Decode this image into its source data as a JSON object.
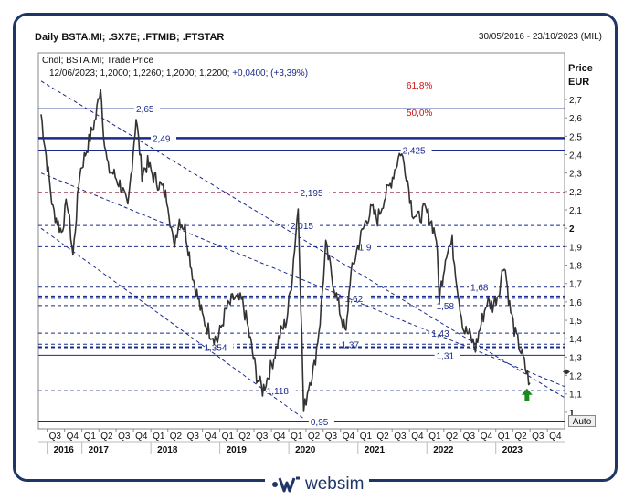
{
  "header": {
    "title": "Daily BSTA.MI; .SX7E; .FTMIB; .FTSTAR",
    "range": "30/05/2016 - 23/10/2023 (MIL)"
  },
  "legend": {
    "line1": "Cndl; BSTA.MI; Trade Price",
    "ohlc": "12/06/2023; 1,2000; 1,2260; 1,2000; 1,2200;",
    "change": "+0,0400; (+3,39%)"
  },
  "axis": {
    "ylabel_1": "Price",
    "ylabel_2": "EUR",
    "auto_label": "Auto",
    "ylim": [
      0.9,
      2.8
    ],
    "y_ticks": [
      {
        "v": 2.7,
        "label": "2,7",
        "bold": false
      },
      {
        "v": 2.6,
        "label": "2,6",
        "bold": false
      },
      {
        "v": 2.5,
        "label": "2,5",
        "bold": false
      },
      {
        "v": 2.4,
        "label": "2,4",
        "bold": false
      },
      {
        "v": 2.3,
        "label": "2,3",
        "bold": false
      },
      {
        "v": 2.2,
        "label": "2,2",
        "bold": false
      },
      {
        "v": 2.1,
        "label": "2,1",
        "bold": false
      },
      {
        "v": 2.0,
        "label": "2",
        "bold": true
      },
      {
        "v": 1.9,
        "label": "1,9",
        "bold": false
      },
      {
        "v": 1.8,
        "label": "1,8",
        "bold": false
      },
      {
        "v": 1.7,
        "label": "1,7",
        "bold": false
      },
      {
        "v": 1.6,
        "label": "1,6",
        "bold": false
      },
      {
        "v": 1.5,
        "label": "1,5",
        "bold": false
      },
      {
        "v": 1.4,
        "label": "1,4",
        "bold": false
      },
      {
        "v": 1.3,
        "label": "1,3",
        "bold": false
      },
      {
        "v": 1.2,
        "label": "1,2",
        "bold": false
      },
      {
        "v": 1.1,
        "label": "1,1",
        "bold": false
      },
      {
        "v": 1.0,
        "label": "1",
        "bold": true
      }
    ],
    "quarters": [
      "Q3",
      "Q4",
      "Q1",
      "Q2",
      "Q3",
      "Q4",
      "Q1",
      "Q2",
      "Q3",
      "Q4",
      "Q1",
      "Q2",
      "Q3",
      "Q4",
      "Q1",
      "Q2",
      "Q3",
      "Q4",
      "Q1",
      "Q2",
      "Q3",
      "Q4",
      "Q1",
      "Q2",
      "Q3",
      "Q4",
      "Q1",
      "Q2",
      "Q3",
      "Q4"
    ],
    "quarters_start": "2016-07-01",
    "years": [
      {
        "label": "2016",
        "start": "2016-07-01"
      },
      {
        "label": "2017",
        "start": "2017-01-01"
      },
      {
        "label": "2018",
        "start": "2018-01-01"
      },
      {
        "label": "2019",
        "start": "2019-01-01"
      },
      {
        "label": "2020",
        "start": "2020-01-01"
      },
      {
        "label": "2021",
        "start": "2021-01-01"
      },
      {
        "label": "2022",
        "start": "2022-01-01"
      },
      {
        "label": "2023",
        "start": "2023-01-01"
      }
    ],
    "x_start": "2016-05-30",
    "x_end": "2023-12-31"
  },
  "chart_data": {
    "type": "line",
    "series": [
      {
        "points": [
          [
            "2016-05-30",
            2.62
          ],
          [
            "2016-07-01",
            2.35
          ],
          [
            "2016-08-01",
            2.1
          ],
          [
            "2016-09-15",
            1.98
          ],
          [
            "2016-10-15",
            2.15
          ],
          [
            "2016-11-15",
            1.85
          ],
          [
            "2016-12-20",
            2.3
          ],
          [
            "2017-02-01",
            2.45
          ],
          [
            "2017-03-15",
            2.6
          ],
          [
            "2017-04-10",
            2.78
          ],
          [
            "2017-05-01",
            2.45
          ],
          [
            "2017-05-20",
            2.32
          ],
          [
            "2017-06-15",
            2.3
          ],
          [
            "2017-08-01",
            2.22
          ],
          [
            "2017-09-01",
            2.1
          ],
          [
            "2017-10-15",
            2.6
          ],
          [
            "2017-11-15",
            2.3
          ],
          [
            "2017-12-15",
            2.35
          ],
          [
            "2018-01-15",
            2.28
          ],
          [
            "2018-03-01",
            2.22
          ],
          [
            "2018-04-01",
            2.15
          ],
          [
            "2018-05-01",
            1.9
          ],
          [
            "2018-06-01",
            2.05
          ],
          [
            "2018-07-01",
            2.0
          ],
          [
            "2018-08-15",
            1.72
          ],
          [
            "2018-10-01",
            1.52
          ],
          [
            "2018-11-01",
            1.45
          ],
          [
            "2018-12-20",
            1.39
          ],
          [
            "2019-02-01",
            1.55
          ],
          [
            "2019-03-15",
            1.62
          ],
          [
            "2019-05-01",
            1.6
          ],
          [
            "2019-06-01",
            1.45
          ],
          [
            "2019-07-15",
            1.2
          ],
          [
            "2019-08-15",
            1.12
          ],
          [
            "2019-09-15",
            1.2
          ],
          [
            "2019-10-20",
            1.32
          ],
          [
            "2019-11-15",
            1.42
          ],
          [
            "2019-12-20",
            1.5
          ],
          [
            "2020-01-15",
            1.7
          ],
          [
            "2020-02-01",
            1.9
          ],
          [
            "2020-02-20",
            2.12
          ],
          [
            "2020-03-05",
            1.6
          ],
          [
            "2020-03-20",
            1.0
          ],
          [
            "2020-04-15",
            1.15
          ],
          [
            "2020-05-15",
            1.25
          ],
          [
            "2020-06-15",
            1.5
          ],
          [
            "2020-07-15",
            1.9
          ],
          [
            "2020-08-15",
            1.75
          ],
          [
            "2020-09-15",
            1.6
          ],
          [
            "2020-10-30",
            1.42
          ],
          [
            "2020-11-20",
            1.72
          ],
          [
            "2020-12-31",
            1.9
          ],
          [
            "2021-02-15",
            2.05
          ],
          [
            "2021-03-15",
            2.1
          ],
          [
            "2021-04-15",
            2.05
          ],
          [
            "2021-05-15",
            2.15
          ],
          [
            "2021-06-15",
            2.22
          ],
          [
            "2021-07-15",
            2.32
          ],
          [
            "2021-08-15",
            2.42
          ],
          [
            "2021-09-15",
            2.3
          ],
          [
            "2021-10-15",
            2.1
          ],
          [
            "2021-11-15",
            2.05
          ],
          [
            "2021-12-20",
            2.1
          ],
          [
            "2022-01-20",
            2.05
          ],
          [
            "2022-02-20",
            1.95
          ],
          [
            "2022-03-08",
            1.62
          ],
          [
            "2022-04-15",
            1.88
          ],
          [
            "2022-05-15",
            1.92
          ],
          [
            "2022-06-20",
            1.62
          ],
          [
            "2022-07-15",
            1.45
          ],
          [
            "2022-08-15",
            1.42
          ],
          [
            "2022-09-15",
            1.35
          ],
          [
            "2022-10-15",
            1.48
          ],
          [
            "2022-11-15",
            1.6
          ],
          [
            "2022-12-15",
            1.58
          ],
          [
            "2023-01-15",
            1.65
          ],
          [
            "2023-02-15",
            1.82
          ],
          [
            "2023-03-15",
            1.58
          ],
          [
            "2023-04-15",
            1.42
          ],
          [
            "2023-05-15",
            1.33
          ],
          [
            "2023-06-12",
            1.22
          ],
          [
            "2023-06-30",
            1.16
          ]
        ]
      }
    ],
    "horizontal_levels": [
      {
        "v": 2.65,
        "label": "2,65",
        "label_date": "2017-10-15",
        "style": "solid",
        "color": "#1a2a8c",
        "width": 1
      },
      {
        "v": 2.49,
        "label": "2,49",
        "label_date": "2018-01-10",
        "style": "solid",
        "color": "#1a2a8c",
        "width": 2.5
      },
      {
        "v": 2.425,
        "label": "2,425",
        "label_date": "2021-08-25",
        "style": "solid",
        "color": "#1a2a8c",
        "width": 1
      },
      {
        "v": 2.195,
        "label": "2,195",
        "label_date": "2020-03-01",
        "style": "dashed",
        "color": "#1a2a8c",
        "width": 1
      },
      {
        "v": 2.015,
        "label": "2,015",
        "label_date": "2020-01-10",
        "style": "dashed",
        "color": "#1a2a8c",
        "width": 1
      },
      {
        "v": 1.9,
        "label": "1,9",
        "label_date": "2021-01-05",
        "style": "dashed",
        "color": "#1a2a8c",
        "width": 1
      },
      {
        "v": 1.68,
        "label": "1,68",
        "label_date": "2022-08-20",
        "style": "dashed",
        "color": "#1a2a8c",
        "width": 1
      },
      {
        "v": 1.63,
        "label": "",
        "label_date": "",
        "style": "dashed",
        "color": "#1a2a8c",
        "width": 2
      },
      {
        "v": 1.62,
        "label": "1,62",
        "label_date": "2020-10-25",
        "style": "dashed",
        "color": "#1a2a8c",
        "width": 1
      },
      {
        "v": 1.58,
        "label": "1,58",
        "label_date": "2022-02-20",
        "style": "dashed",
        "color": "#1a2a8c",
        "width": 1
      },
      {
        "v": 1.43,
        "label": "1,43",
        "label_date": "2022-01-25",
        "style": "dashed",
        "color": "#1a2a8c",
        "width": 1
      },
      {
        "v": 1.37,
        "label": "1,37",
        "label_date": "2020-10-05",
        "style": "dashed",
        "color": "#1a2a8c",
        "width": 1
      },
      {
        "v": 1.354,
        "label": "1,354",
        "label_date": "2018-10-10",
        "style": "dashed",
        "color": "#1a2a8c",
        "width": 2
      },
      {
        "v": 1.31,
        "label": "1,31",
        "label_date": "2022-02-20",
        "style": "solid",
        "color": "#1a2a8c",
        "width": 1
      },
      {
        "v": 1.118,
        "label": "1,118",
        "label_date": "2019-09-05",
        "style": "dashed",
        "color": "#1a2a8c",
        "width": 1
      },
      {
        "v": 0.95,
        "label": "0,95",
        "label_date": "2020-04-25",
        "style": "solid",
        "color": "#1a2a8c",
        "width": 2
      }
    ],
    "fibonacci": [
      {
        "label": "61,8%",
        "v": 2.78
      },
      {
        "label": "50,0%",
        "v": 2.63
      }
    ],
    "trendlines": [
      {
        "from": [
          "2016-05-30",
          2.3
        ],
        "to": [
          "2023-12-31",
          1.14
        ]
      },
      {
        "from": [
          "2016-05-30",
          2.0
        ],
        "to": [
          "2020-03-15",
          0.97
        ]
      },
      {
        "from": [
          "2016-05-30",
          2.8
        ],
        "to": [
          "2023-12-31",
          1.08
        ]
      }
    ],
    "ylim": [
      0.9,
      2.8
    ],
    "markers": [
      {
        "type": "arrow-up",
        "date": "2023-06-15",
        "v": 1.09,
        "color": "#1a8c1a"
      }
    ]
  },
  "colors": {
    "frame": "#1f3566",
    "price_line": "#333333",
    "level": "#1a2a8c",
    "special_level": "#8c1a3a",
    "fib": "#cc1111"
  },
  "logo": {
    "text": "websim",
    "icon": "websim-logo-icon"
  }
}
